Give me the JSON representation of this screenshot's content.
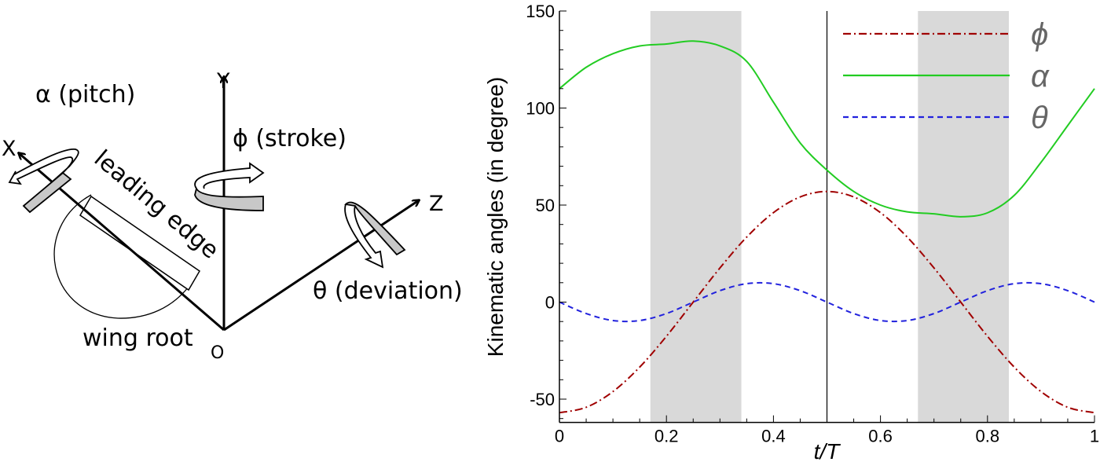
{
  "diagram": {
    "axis_x": "X",
    "axis_y": "Y",
    "axis_z": "Z",
    "origin": "O",
    "pitch_label": "α (pitch)",
    "stroke_label": "ϕ (stroke)",
    "deviation_label": "θ (deviation)",
    "leading_edge_label": "leading edge",
    "wing_root_label": "wing root"
  },
  "chart_data": {
    "type": "line",
    "xlabel": "t/T",
    "ylabel": "Kinematic angles (in degree)",
    "xlim": [
      0,
      1
    ],
    "ylim": [
      -62,
      150
    ],
    "xticks": [
      "0",
      "0.2",
      "0.4",
      "0.6",
      "0.8",
      "1"
    ],
    "yticks": [
      "-50",
      "0",
      "50",
      "100",
      "150"
    ],
    "grid": false,
    "legend_position": "top-right",
    "shaded_intervals": [
      [
        0.17,
        0.34
      ],
      [
        0.67,
        0.84
      ]
    ],
    "vertical_line_x": 0.5,
    "x": [
      0,
      0.05,
      0.1,
      0.15,
      0.2,
      0.25,
      0.3,
      0.35,
      0.4,
      0.45,
      0.5,
      0.55,
      0.6,
      0.65,
      0.7,
      0.75,
      0.8,
      0.85,
      0.9,
      0.95,
      1
    ],
    "series": [
      {
        "name": "ϕ",
        "color": "#a00000",
        "style": "dash-dot",
        "values": [
          -57,
          -54.2,
          -46.1,
          -33.5,
          -17.6,
          0,
          17.6,
          33.5,
          46.1,
          54.2,
          57,
          54.2,
          46.1,
          33.5,
          17.6,
          0,
          -17.6,
          -33.5,
          -46.1,
          -54.2,
          -57
        ]
      },
      {
        "name": "α",
        "color": "#22cc22",
        "style": "solid",
        "values": [
          110,
          121,
          128,
          132,
          133,
          134.5,
          132,
          124,
          103,
          82,
          68,
          57,
          50,
          46.5,
          45.5,
          44,
          46,
          55,
          72,
          91,
          110
        ]
      },
      {
        "name": "θ",
        "color": "#2222dd",
        "style": "dashed",
        "values": [
          0,
          -5.9,
          -9.5,
          -9.5,
          -5.9,
          0,
          5.9,
          9.5,
          9.5,
          5.9,
          0,
          -5.9,
          -9.5,
          -9.5,
          -5.9,
          0,
          5.9,
          9.5,
          9.5,
          5.9,
          0
        ]
      }
    ]
  }
}
